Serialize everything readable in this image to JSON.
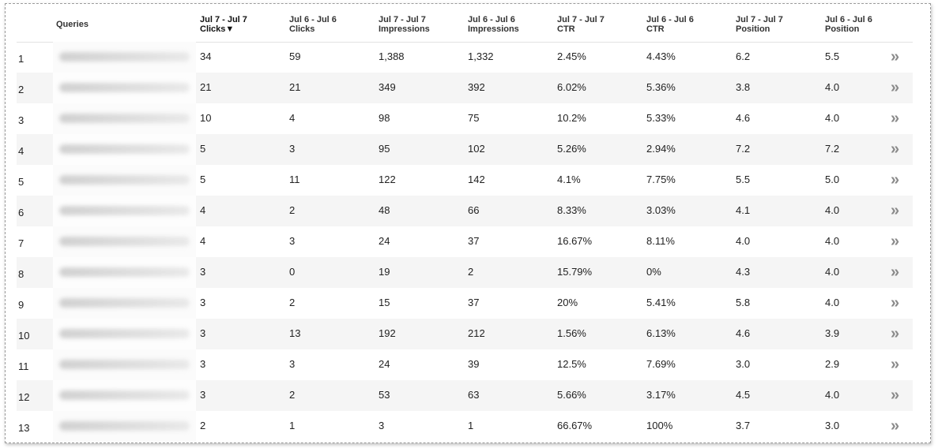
{
  "header": {
    "queries": "Queries",
    "columns": [
      {
        "line1": "Jul 7 - Jul 7",
        "line2": "Clicks▼"
      },
      {
        "line1": "Jul 6 - Jul 6",
        "line2": "Clicks"
      },
      {
        "line1": "Jul 7 - Jul 7",
        "line2": "Impressions"
      },
      {
        "line1": "Jul 6 - Jul 6",
        "line2": "Impressions"
      },
      {
        "line1": "Jul 7 - Jul 7",
        "line2": "CTR"
      },
      {
        "line1": "Jul 6 - Jul 6",
        "line2": "CTR"
      },
      {
        "line1": "Jul 7 - Jul 7",
        "line2": "Position"
      },
      {
        "line1": "Jul 6 - Jul 6",
        "line2": "Position"
      }
    ]
  },
  "rows": [
    {
      "rank": "1",
      "cells": [
        "34",
        "59",
        "1,388",
        "1,332",
        "2.45%",
        "4.43%",
        "6.2",
        "5.5"
      ]
    },
    {
      "rank": "2",
      "cells": [
        "21",
        "21",
        "349",
        "392",
        "6.02%",
        "5.36%",
        "3.8",
        "4.0"
      ]
    },
    {
      "rank": "3",
      "cells": [
        "10",
        "4",
        "98",
        "75",
        "10.2%",
        "5.33%",
        "4.6",
        "4.0"
      ]
    },
    {
      "rank": "4",
      "cells": [
        "5",
        "3",
        "95",
        "102",
        "5.26%",
        "2.94%",
        "7.2",
        "7.2"
      ]
    },
    {
      "rank": "5",
      "cells": [
        "5",
        "11",
        "122",
        "142",
        "4.1%",
        "7.75%",
        "5.5",
        "5.0"
      ]
    },
    {
      "rank": "6",
      "cells": [
        "4",
        "2",
        "48",
        "66",
        "8.33%",
        "3.03%",
        "4.1",
        "4.0"
      ]
    },
    {
      "rank": "7",
      "cells": [
        "4",
        "3",
        "24",
        "37",
        "16.67%",
        "8.11%",
        "4.0",
        "4.0"
      ]
    },
    {
      "rank": "8",
      "cells": [
        "3",
        "0",
        "19",
        "2",
        "15.79%",
        "0%",
        "4.3",
        "4.0"
      ]
    },
    {
      "rank": "9",
      "cells": [
        "3",
        "2",
        "15",
        "37",
        "20%",
        "5.41%",
        "5.8",
        "4.0"
      ]
    },
    {
      "rank": "10",
      "cells": [
        "3",
        "13",
        "192",
        "212",
        "1.56%",
        "6.13%",
        "4.6",
        "3.9"
      ]
    },
    {
      "rank": "11",
      "cells": [
        "3",
        "3",
        "24",
        "39",
        "12.5%",
        "7.69%",
        "3.0",
        "2.9"
      ]
    },
    {
      "rank": "12",
      "cells": [
        "3",
        "2",
        "53",
        "63",
        "5.66%",
        "3.17%",
        "4.5",
        "4.0"
      ]
    },
    {
      "rank": "13",
      "cells": [
        "2",
        "1",
        "3",
        "1",
        "66.67%",
        "100%",
        "3.7",
        "3.0"
      ]
    }
  ],
  "chevron_glyph": "»",
  "colors": {
    "alt_row": "#f5f5f5",
    "chevron": "#8a8a8a"
  }
}
